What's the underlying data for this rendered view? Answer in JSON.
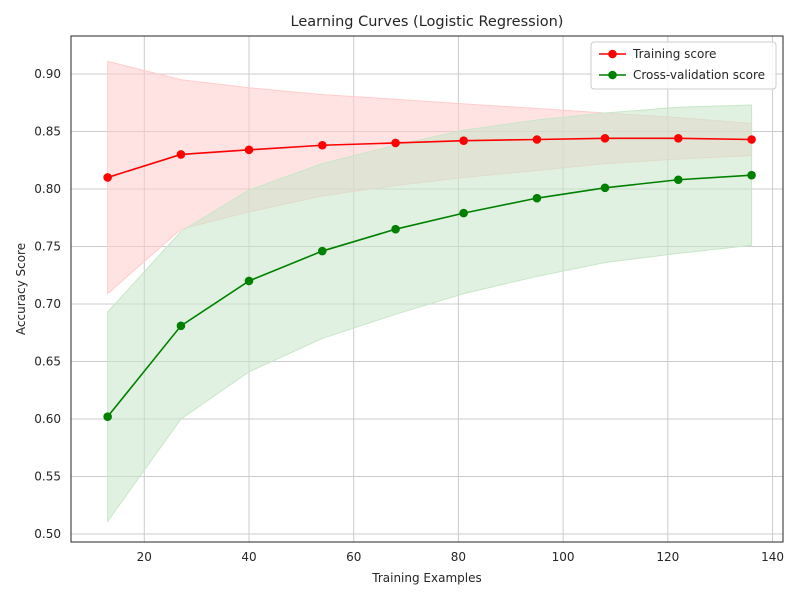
{
  "chart_data": {
    "type": "line",
    "title": "Learning Curves (Logistic Regression)",
    "xlabel": "Training Examples",
    "ylabel": "Accuracy Score",
    "xlim": [
      6,
      142
    ],
    "ylim": [
      0.493,
      0.933
    ],
    "xticks": [
      20,
      40,
      60,
      80,
      100,
      120,
      140
    ],
    "yticks": [
      0.5,
      0.55,
      0.6,
      0.65,
      0.7,
      0.75,
      0.8,
      0.85,
      0.9
    ],
    "grid": true,
    "legend": "top-right",
    "x": [
      13,
      27,
      40,
      54,
      68,
      81,
      95,
      108,
      122,
      136
    ],
    "series": [
      {
        "name": "Training score",
        "color": "#ff0000",
        "band_color": "#ffcccc",
        "values": [
          0.81,
          0.83,
          0.834,
          0.838,
          0.84,
          0.842,
          0.843,
          0.844,
          0.844,
          0.843
        ],
        "upper": [
          0.911,
          0.895,
          0.888,
          0.882,
          0.878,
          0.874,
          0.87,
          0.866,
          0.862,
          0.857
        ],
        "lower": [
          0.709,
          0.765,
          0.78,
          0.794,
          0.803,
          0.81,
          0.816,
          0.822,
          0.826,
          0.829
        ]
      },
      {
        "name": "Cross-validation score",
        "color": "#008000",
        "band_color": "#c8e6c8",
        "values": [
          0.602,
          0.681,
          0.72,
          0.746,
          0.765,
          0.779,
          0.792,
          0.801,
          0.808,
          0.812
        ],
        "upper": [
          0.693,
          0.763,
          0.799,
          0.822,
          0.838,
          0.851,
          0.86,
          0.866,
          0.871,
          0.873
        ],
        "lower": [
          0.511,
          0.6,
          0.641,
          0.67,
          0.691,
          0.709,
          0.724,
          0.736,
          0.744,
          0.751
        ]
      }
    ]
  }
}
